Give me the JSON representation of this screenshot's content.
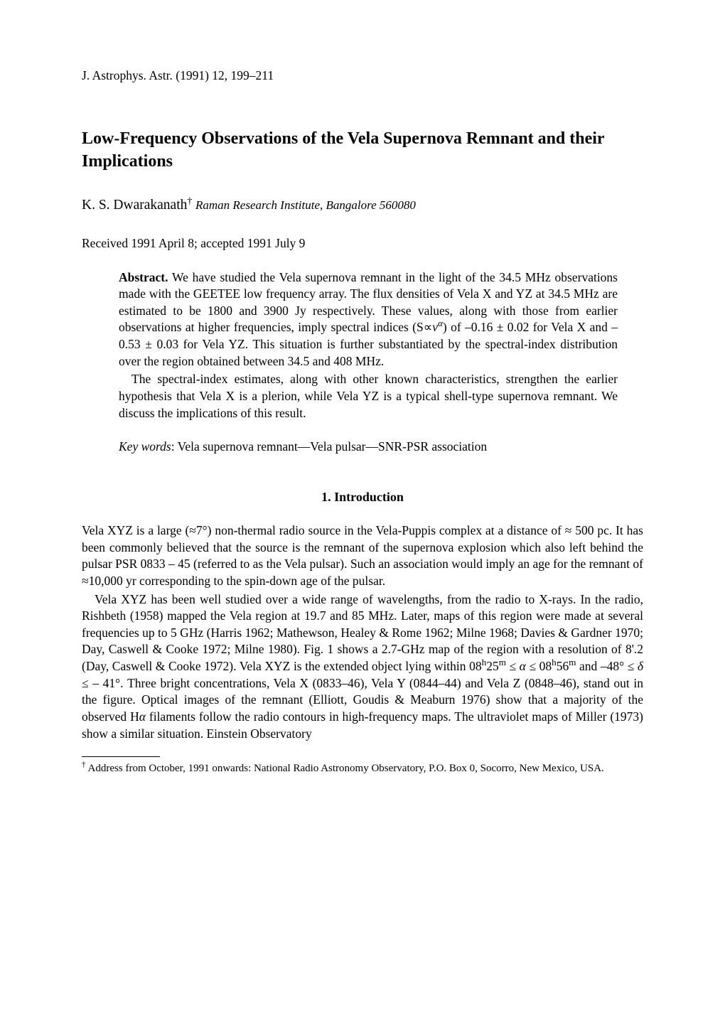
{
  "journal_header": "J. Astrophys. Astr. (1991) 12, 199–211",
  "title": "Low-Frequency Observations of the Vela Supernova Remnant and their Implications",
  "author": "K. S. Dwarakanath",
  "dagger_symbol": "†",
  "affiliation": "Raman Research Institute, Bangalore 560080",
  "received": "Received 1991 April 8; accepted 1991 July 9",
  "abstract": {
    "label": "Abstract.",
    "text_html": " We have studied the Vela supernova remnant in the light of the 34.5 MHz observations made with the GEETEE low frequency array. The flux densities of Vela X and YZ at 34.5 MHz are estimated to be 1800 and 3900 Jy respectively. These values, along with those from earlier observations at higher frequencies, imply spectral indices (S∝<i>v<sup>α</sup></i>) of –0.16 ± 0.02 for Vela X and –0.53 ± 0.03 for Vela YZ. This situation is further substantiated by the spectral-index distribution over the region obtained between 34.5 and 408 MHz.",
    "para2": "The spectral-index estimates, along with other known characteristics, strengthen the earlier hypothesis that Vela X is a plerion, while Vela YZ is a typical shell-type supernova remnant. We discuss the implications of this result."
  },
  "keywords": {
    "label": "Key words",
    "text": ": Vela supernova remnant—Vela pulsar—SNR-PSR association"
  },
  "section1": {
    "heading": "1. Introduction",
    "para1_html": "Vela XYZ is a large (≈7°) non-thermal radio source in the Vela-Puppis complex at a distance of ≈ 500 pc. It has been commonly believed that the source is the remnant of the supernova explosion which also left behind the pulsar PSR 0833 – 45 (referred to as the Vela pulsar). Such an association would imply an age for the remnant of ≈10,000 yr corresponding to the spin-down age of the pulsar.",
    "para2_html": "Vela XYZ has been well studied over a wide range of wavelengths, from the radio to X-rays. In the radio, Rishbeth (1958) mapped the Vela region at 19.7 and 85 MHz. Later, maps of this region were made at several frequencies up to 5 GHz (Harris 1962; Mathewson, Healey & Rome 1962; Milne 1968; Davies & Gardner 1970; Day, Caswell & Cooke 1972; Milne 1980). Fig. 1 shows a 2.7-GHz map of the region with a resolution of 8'.2 (Day, Caswell & Cooke 1972). Vela XYZ is the extended object lying within 08<sup>h</sup>25<sup>m</sup> ≤ <i>α</i> ≤ 08<sup>h</sup>56<sup>m</sup> and –48° ≤ <i>δ</i> ≤ – 41°. Three bright concentrations, Vela X (0833–46), Vela Y (0844–44) and Vela Z (0848–46), stand out in the figure. Optical images of the remnant (Elliott, Goudis & Meaburn 1976) show that a majority of the observed H<i>α</i> filaments follow the radio contours in high-frequency maps. The ultraviolet maps of Miller (1973) show a similar situation. Einstein Observatory"
  },
  "footnote": {
    "html": "<sup>†</sup> Address from October, 1991 onwards: National Radio Astronomy Observatory, P.O. Box 0, Socorro, New Mexico, USA."
  },
  "colors": {
    "text": "#000000",
    "background": "#ffffff"
  }
}
